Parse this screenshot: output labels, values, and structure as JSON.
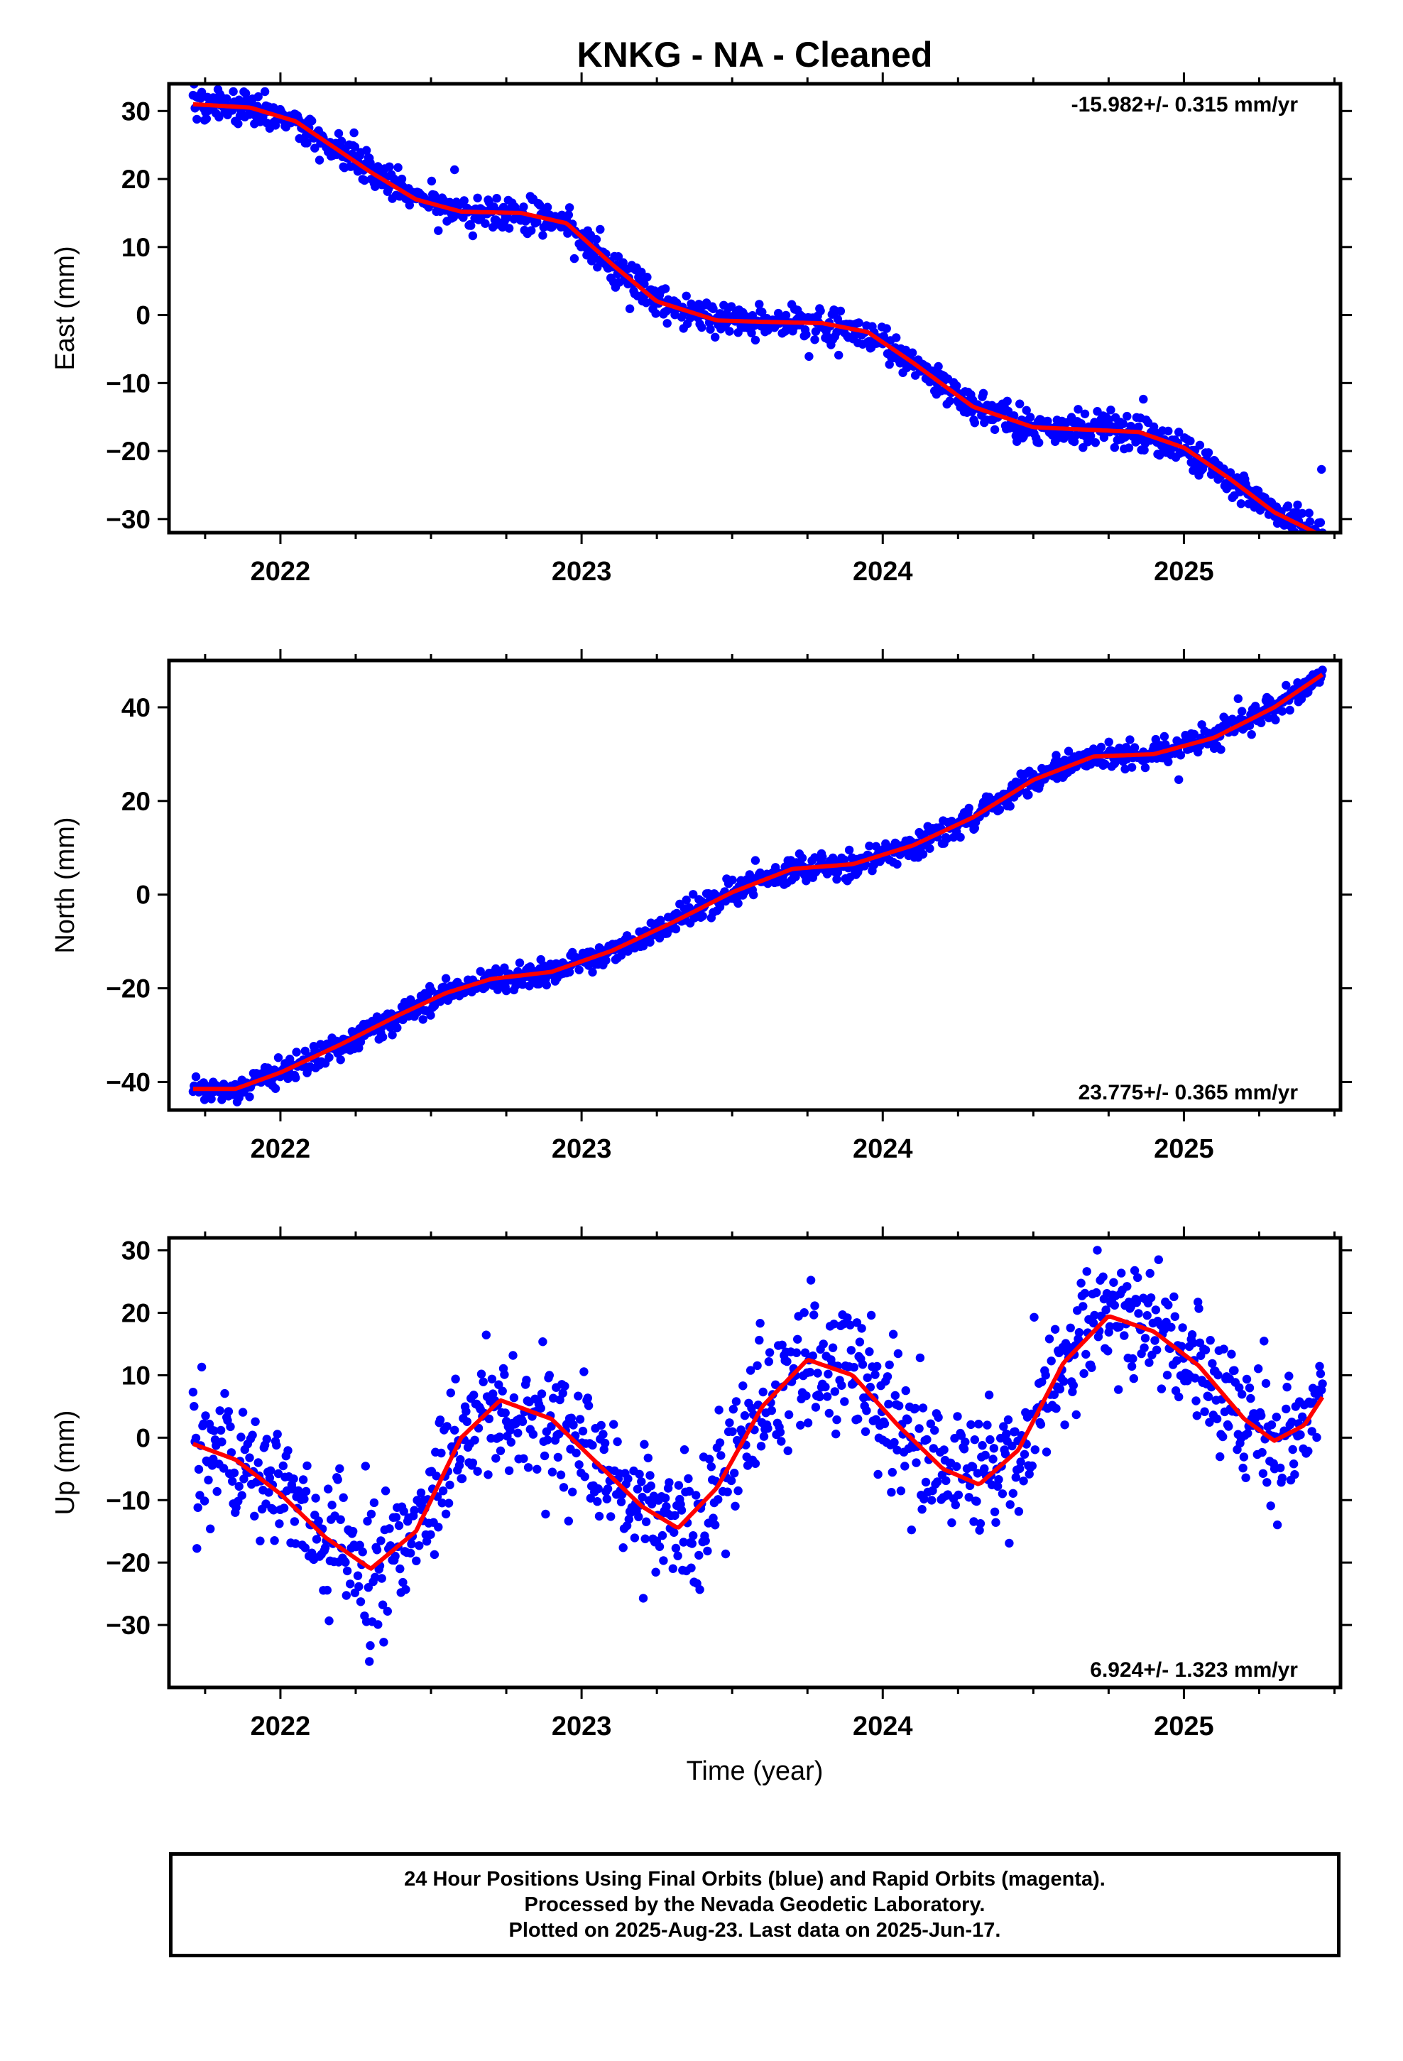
{
  "title": "KNKG  - NA - Cleaned",
  "colors": {
    "points": "#0000ff",
    "fit": "#ff0000",
    "frame": "#000000"
  },
  "chart_data": [
    {
      "type": "scatter",
      "component": "East",
      "ylabel": "East (mm)",
      "xlabel": "",
      "rate_label": "-15.982+/- 0.315 mm/yr",
      "rate_position": "top-right",
      "xlim": [
        2021.63,
        2025.52
      ],
      "ylim": [
        -32,
        34
      ],
      "yticks": [
        30,
        20,
        10,
        0,
        -10,
        -20,
        -30
      ],
      "ytick_labels": [
        "30",
        "20",
        "10",
        "0",
        "−10",
        "−20",
        "−30"
      ],
      "xticks": [
        2022,
        2023,
        2024,
        2025
      ],
      "xtick_labels": [
        "2022",
        "2023",
        "2024",
        "2025"
      ],
      "grid": false,
      "data_span": [
        2021.71,
        2025.46
      ],
      "noise_mm": 1.2,
      "fit_series": {
        "name": "model fit",
        "x": [
          2021.71,
          2021.9,
          2022.05,
          2022.3,
          2022.45,
          2022.6,
          2022.8,
          2022.95,
          2023.1,
          2023.25,
          2023.45,
          2023.6,
          2023.8,
          2023.95,
          2024.1,
          2024.3,
          2024.5,
          2024.65,
          2024.85,
          2025.0,
          2025.15,
          2025.3,
          2025.46
        ],
        "y": [
          31,
          30.5,
          28.5,
          21,
          17,
          15.2,
          15,
          13.5,
          7.5,
          2,
          -0.8,
          -1,
          -1.2,
          -2.5,
          -7,
          -13.5,
          -16.5,
          -16.8,
          -17.2,
          -19.5,
          -24,
          -29,
          -32.5
        ]
      }
    },
    {
      "type": "scatter",
      "component": "North",
      "ylabel": "North (mm)",
      "xlabel": "",
      "rate_label": "23.775+/- 0.365 mm/yr",
      "rate_position": "bottom-right",
      "xlim": [
        2021.63,
        2025.52
      ],
      "ylim": [
        -46,
        50
      ],
      "yticks": [
        40,
        20,
        0,
        -20,
        -40
      ],
      "ytick_labels": [
        "40",
        "20",
        "0",
        "−20",
        "−40"
      ],
      "xticks": [
        2022,
        2023,
        2024,
        2025
      ],
      "xtick_labels": [
        "2022",
        "2023",
        "2024",
        "2025"
      ],
      "grid": false,
      "data_span": [
        2021.71,
        2025.46
      ],
      "noise_mm": 1.4,
      "fit_series": {
        "name": "model fit",
        "x": [
          2021.71,
          2021.85,
          2022.0,
          2022.2,
          2022.4,
          2022.55,
          2022.7,
          2022.9,
          2023.1,
          2023.3,
          2023.5,
          2023.7,
          2023.9,
          2024.1,
          2024.3,
          2024.5,
          2024.7,
          2024.9,
          2025.1,
          2025.3,
          2025.46
        ],
        "y": [
          -41.5,
          -41.5,
          -38,
          -32,
          -25.5,
          -21,
          -18,
          -16.5,
          -12,
          -6,
          0.5,
          5.5,
          6.5,
          10.5,
          16.5,
          24.5,
          29.5,
          30,
          33.5,
          40,
          47
        ]
      }
    },
    {
      "type": "scatter",
      "component": "Up",
      "ylabel": "Up (mm)",
      "xlabel": "Time (year)",
      "rate_label": "6.924+/- 1.323 mm/yr",
      "rate_position": "bottom-right",
      "xlim": [
        2021.63,
        2025.52
      ],
      "ylim": [
        -40,
        32
      ],
      "yticks": [
        30,
        20,
        10,
        0,
        -10,
        -20,
        -30
      ],
      "ytick_labels": [
        "30",
        "20",
        "10",
        "0",
        "−10",
        "−20",
        "−30"
      ],
      "xticks": [
        2022,
        2023,
        2024,
        2025
      ],
      "xtick_labels": [
        "2022",
        "2023",
        "2024",
        "2025"
      ],
      "grid": false,
      "data_span": [
        2021.71,
        2025.46
      ],
      "noise_mm": 5.2,
      "fit_series": {
        "name": "model fit",
        "x": [
          2021.71,
          2021.85,
          2022.0,
          2022.15,
          2022.3,
          2022.45,
          2022.6,
          2022.73,
          2022.9,
          2023.05,
          2023.2,
          2023.32,
          2023.45,
          2023.6,
          2023.75,
          2023.9,
          2024.05,
          2024.2,
          2024.32,
          2024.45,
          2024.6,
          2024.75,
          2024.9,
          2025.05,
          2025.2,
          2025.3,
          2025.4,
          2025.46
        ],
        "y": [
          -1,
          -3.5,
          -9,
          -16,
          -21,
          -15,
          0,
          6,
          3,
          -4,
          -11,
          -14.5,
          -8,
          5,
          12.5,
          10,
          2,
          -5,
          -7.5,
          -2,
          12,
          19.5,
          17,
          11.5,
          3,
          -0.5,
          2,
          6.5
        ]
      }
    }
  ],
  "footer": {
    "line1": "24 Hour Positions Using Final Orbits (blue) and Rapid Orbits (magenta).",
    "line2": "Processed by the Nevada Geodetic Laboratory.",
    "line3": "Plotted on 2025-Aug-23. Last data on 2025-Jun-17."
  }
}
